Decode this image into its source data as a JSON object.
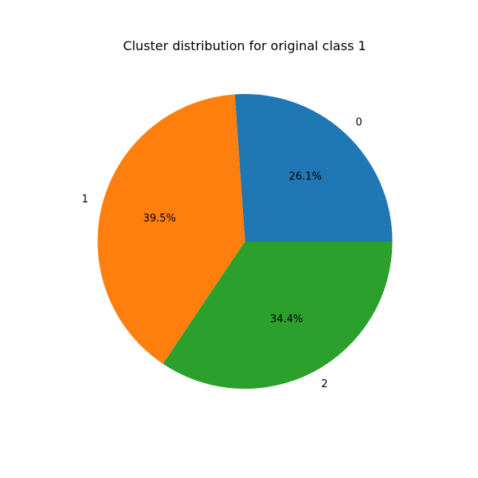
{
  "chart_data": {
    "type": "pie",
    "title": "Cluster distribution for original class 1",
    "labels": [
      "0",
      "1",
      "2"
    ],
    "values": [
      26.1,
      39.5,
      34.4
    ],
    "percent_labels": [
      "26.1%",
      "39.5%",
      "34.4%"
    ],
    "colors": [
      "#1f77b4",
      "#ff7f0e",
      "#2ca02c"
    ],
    "start_angle_deg": 0,
    "direction": "counterclockwise"
  }
}
